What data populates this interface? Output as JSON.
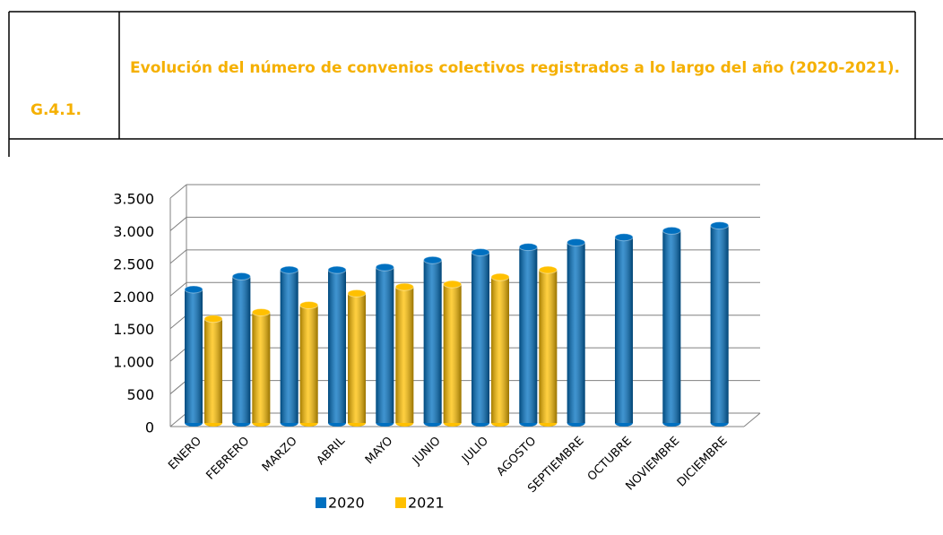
{
  "header": {
    "code": "G.4.1.",
    "title": "Evolución del número de convenios colectivos registrados a lo largo del año (2020-2021)."
  },
  "chart_data": {
    "type": "bar",
    "categories": [
      "ENERO",
      "FEBRERO",
      "MARZO",
      "ABRIL",
      "MAYO",
      "JUNIO",
      "JULIO",
      "AGOSTO",
      "SEPTIEMBRE",
      "OCTUBRE",
      "NOVIEMBRE",
      "DICIEMBRE"
    ],
    "series": [
      {
        "name": "2020",
        "color": "#0070c0",
        "values": [
          2100,
          2300,
          2400,
          2400,
          2440,
          2550,
          2670,
          2750,
          2820,
          2900,
          3000,
          3080
        ]
      },
      {
        "name": "2021",
        "color": "#ffc000",
        "values": [
          1650,
          1750,
          1860,
          2040,
          2140,
          2180,
          2290,
          2400,
          null,
          null,
          null,
          null
        ]
      }
    ],
    "ylim": [
      0,
      3500
    ],
    "yticks": [
      0,
      500,
      {
        "value": 1000,
        "label": "1.000"
      },
      {
        "value": 1500,
        "label": "1.500"
      },
      {
        "value": 2000,
        "label": "2.000"
      },
      {
        "value": 2500,
        "label": "2.500"
      },
      {
        "value": 3000,
        "label": "3.000"
      },
      {
        "value": 3500,
        "label": "3.500"
      }
    ],
    "grid": true,
    "legend": "bottom"
  }
}
